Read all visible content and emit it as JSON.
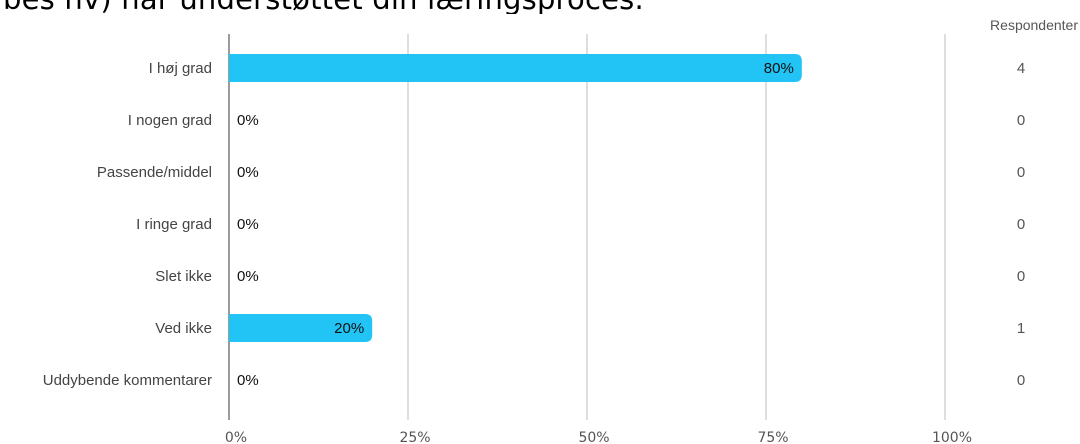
{
  "title": "bes hv) har understøttet din læringsproces.",
  "chart_data": {
    "type": "bar",
    "orientation": "horizontal",
    "categories": [
      "I høj grad",
      "I nogen grad",
      "Passende/middel",
      "I ringe grad",
      "Slet ikke",
      "Ved ikke",
      "Uddybende kommentarer"
    ],
    "values": [
      80,
      0,
      0,
      0,
      0,
      20,
      0
    ],
    "value_labels": [
      "80%",
      "0%",
      "0%",
      "0%",
      "0%",
      "20%",
      "0%"
    ],
    "respondents": [
      4,
      0,
      0,
      0,
      0,
      1,
      0
    ],
    "respondents_header": "Respondenter",
    "xlim": [
      0,
      100
    ],
    "x_ticks": [
      0,
      25,
      50,
      75,
      100
    ],
    "x_tick_labels": [
      "0%",
      "25%",
      "50%",
      "75%",
      "100%"
    ],
    "grid": true,
    "bar_color": "#21c4f4"
  }
}
